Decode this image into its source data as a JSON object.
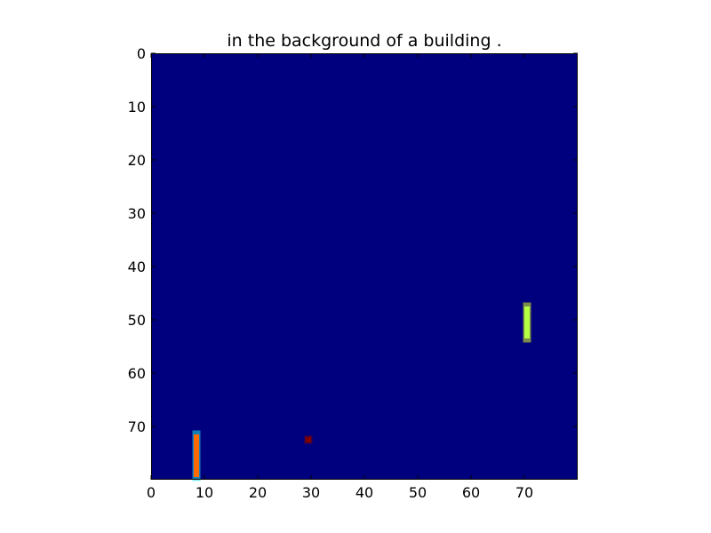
{
  "chart_data": {
    "type": "heatmap",
    "title": "in the background of a building .",
    "xlabel": "",
    "ylabel": "",
    "xlim": [
      0,
      80
    ],
    "ylim": [
      80,
      0
    ],
    "y_axis_inverted": true,
    "grid": false,
    "colormap": "jet",
    "background_value": 0.0,
    "background_color": "#00007f",
    "x_ticks": [
      0,
      10,
      20,
      30,
      40,
      50,
      60,
      70
    ],
    "y_ticks": [
      0,
      10,
      20,
      30,
      40,
      50,
      60,
      70
    ],
    "x_tick_labels": [
      "0",
      "10",
      "20",
      "30",
      "40",
      "50",
      "60",
      "70"
    ],
    "y_tick_labels": [
      "0",
      "10",
      "20",
      "30",
      "40",
      "50",
      "60",
      "70"
    ],
    "regions": [
      {
        "name": "bar-70",
        "x_range": [
          70,
          71
        ],
        "y_range": [
          47,
          54
        ],
        "value": 0.7,
        "color": "#b4ff43",
        "edge_color": "#e0ff20"
      },
      {
        "name": "bar-8",
        "x_range": [
          8,
          9
        ],
        "y_range": [
          71,
          80
        ],
        "value": 0.8,
        "color": "#ff6a00",
        "edge_color": "#20e8e8"
      },
      {
        "name": "dot-30",
        "x_range": [
          29,
          30
        ],
        "y_range": [
          72,
          73
        ],
        "value": 1.0,
        "color": "#800000",
        "edge_color": "#800000"
      }
    ]
  }
}
